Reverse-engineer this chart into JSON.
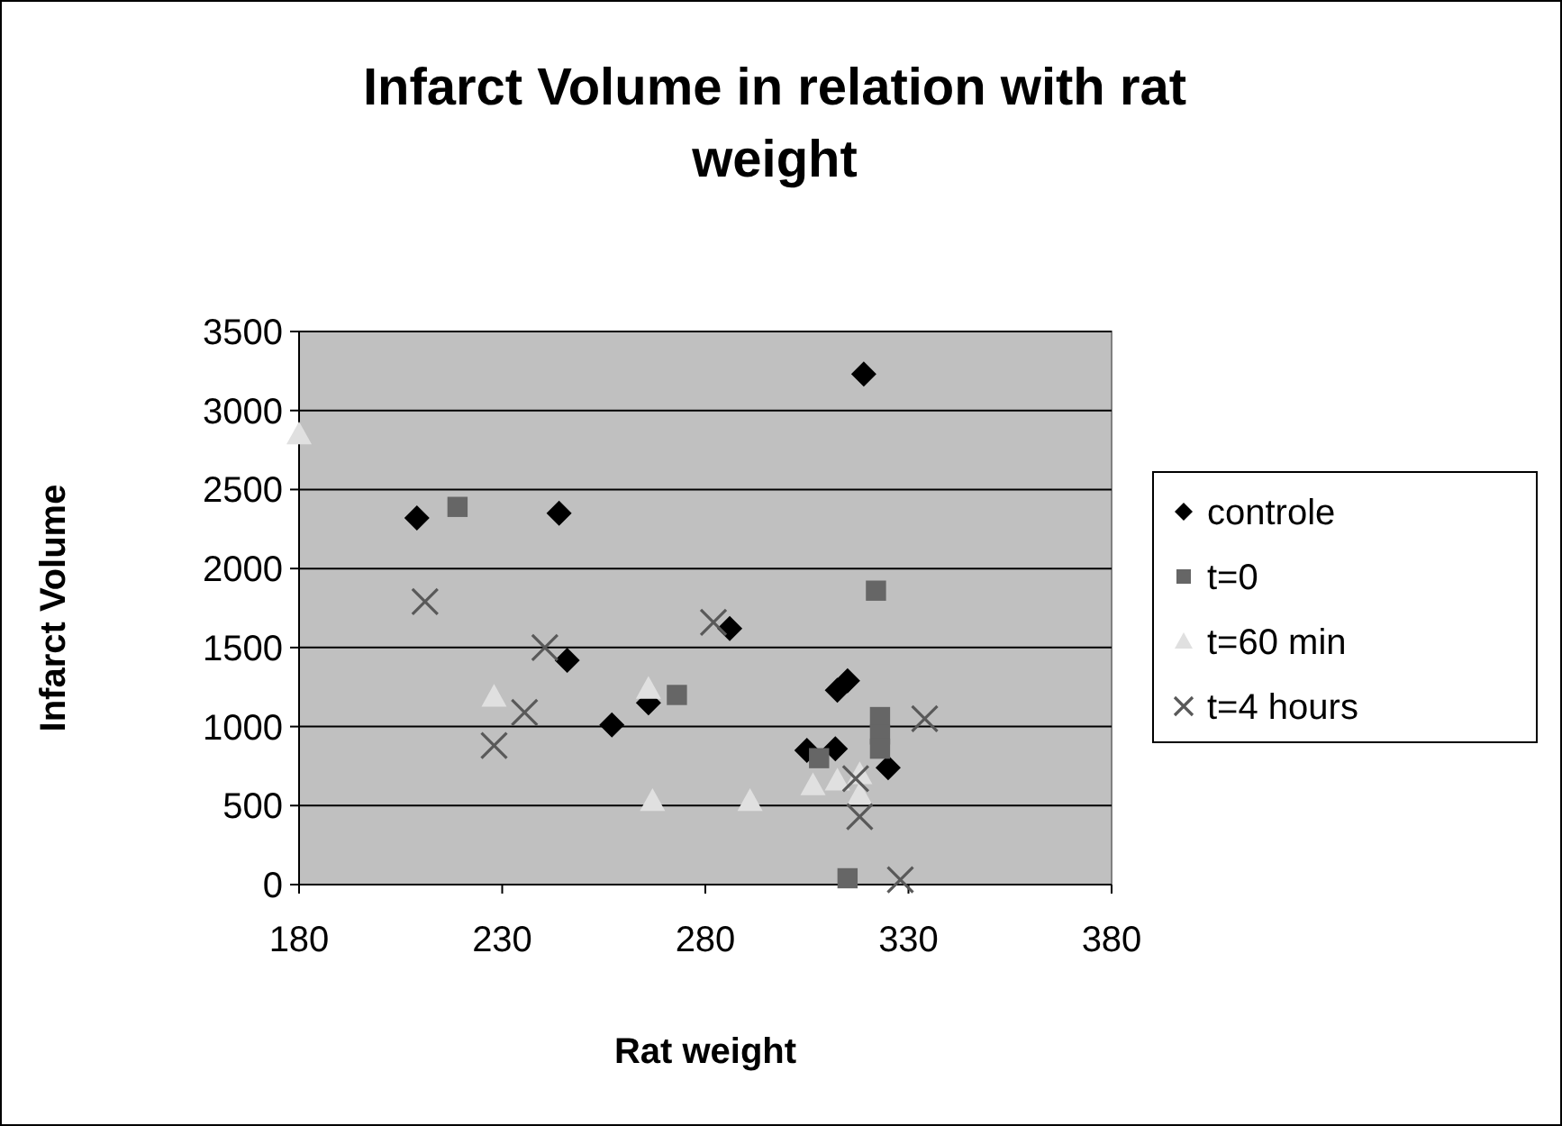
{
  "chart_data": {
    "type": "scatter",
    "title": "Infarct Volume in relation with rat weight",
    "xlabel": "Rat weight",
    "ylabel": "Infarct Volume",
    "xlim": [
      180,
      380
    ],
    "xticks": [
      180,
      230,
      280,
      330,
      380
    ],
    "ylim": [
      0,
      3500
    ],
    "yticks": [
      0,
      500,
      1000,
      1500,
      2000,
      2500,
      3000,
      3500
    ],
    "grid": "y",
    "legend": "right",
    "series": [
      {
        "name": "controle",
        "color": "#000000",
        "marker": "diamond",
        "x": [
          209,
          244,
          246,
          319,
          286,
          266,
          257,
          312.5,
          315,
          305,
          312,
          325
        ],
        "values": [
          2320,
          2350,
          1420,
          3230,
          1620,
          1150,
          1010,
          1230,
          1290,
          850,
          860,
          740
        ]
      },
      {
        "name": "t=0",
        "color": "#666666",
        "marker": "square",
        "x": [
          219,
          322,
          273,
          323,
          323,
          323,
          308,
          315
        ],
        "values": [
          2390,
          1860,
          1200,
          1060,
          950,
          860,
          800,
          40
        ]
      },
      {
        "name": "t=60 min",
        "color": "#e0e0e0",
        "marker": "triangle",
        "x": [
          180,
          228,
          266,
          267,
          291,
          306.5,
          312.5,
          318,
          318
        ],
        "values": [
          2850,
          1190,
          1240,
          530,
          530,
          630,
          660,
          700,
          570
        ]
      },
      {
        "name": "t=4 hours",
        "color": "#595959",
        "marker": "cross",
        "x": [
          211,
          240.5,
          235.5,
          228,
          282,
          317,
          318,
          328,
          334
        ],
        "values": [
          1790,
          1500,
          1090,
          880,
          1660,
          670,
          430,
          30,
          1050
        ]
      }
    ]
  }
}
